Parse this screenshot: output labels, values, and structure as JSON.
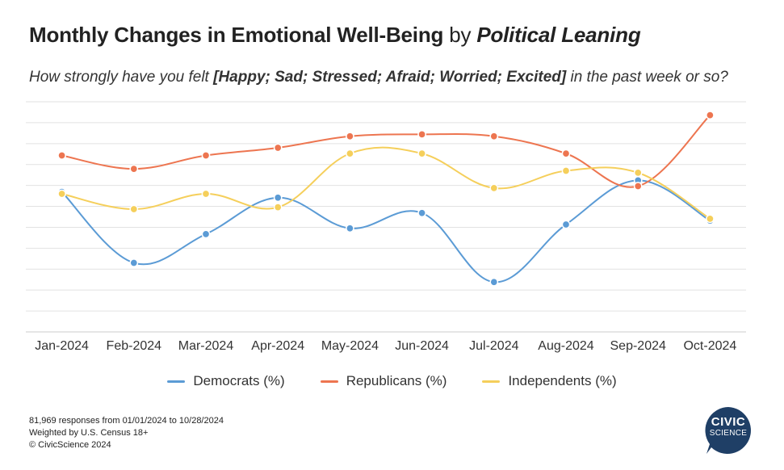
{
  "header": {
    "title_main": "Monthly Changes in Emotional Well-Being",
    "title_by": "by",
    "title_lean": "Political Leaning",
    "subtitle_pre": "How strongly have you felt",
    "subtitle_emph": "[Happy; Sad; Stressed; Afraid; Worried; Excited]",
    "subtitle_post": "in the past week or so?"
  },
  "chart_data": {
    "type": "line",
    "categories": [
      "Jan-2024",
      "Feb-2024",
      "Mar-2024",
      "Apr-2024",
      "May-2024",
      "Jun-2024",
      "Jul-2024",
      "Aug-2024",
      "Sep-2024",
      "Oct-2024"
    ],
    "series": [
      {
        "name": "Democrats (%)",
        "color": "#5b9bd5",
        "values": [
          6.3,
          2.6,
          4.1,
          6.0,
          4.4,
          5.2,
          1.6,
          4.6,
          6.9,
          4.8
        ]
      },
      {
        "name": "Republicans (%)",
        "color": "#ed7550",
        "values": [
          8.2,
          7.5,
          8.2,
          8.6,
          9.2,
          9.3,
          9.2,
          8.3,
          6.6,
          10.3
        ]
      },
      {
        "name": "Independents (%)",
        "color": "#f5cf5b",
        "values": [
          6.2,
          5.4,
          6.2,
          5.5,
          8.3,
          8.3,
          6.5,
          7.4,
          7.3,
          4.9
        ]
      }
    ],
    "ylim": [
      -1,
      11
    ],
    "grid": true,
    "y_tick_labels": false,
    "legend_position": "bottom-center",
    "curve": "smooth"
  },
  "legend": {
    "dem": "Democrats (%)",
    "rep": "Republicans (%)",
    "ind": "Independents (%)"
  },
  "footer": {
    "line1": "81,969 responses from 01/01/2024 to 10/28/2024",
    "line2": "Weighted by U.S. Census 18+",
    "line3": "© CivicScience 2024"
  },
  "logo": {
    "line1": "CIVIC",
    "line2": "SCIENCE",
    "color": "#1f3f66"
  }
}
